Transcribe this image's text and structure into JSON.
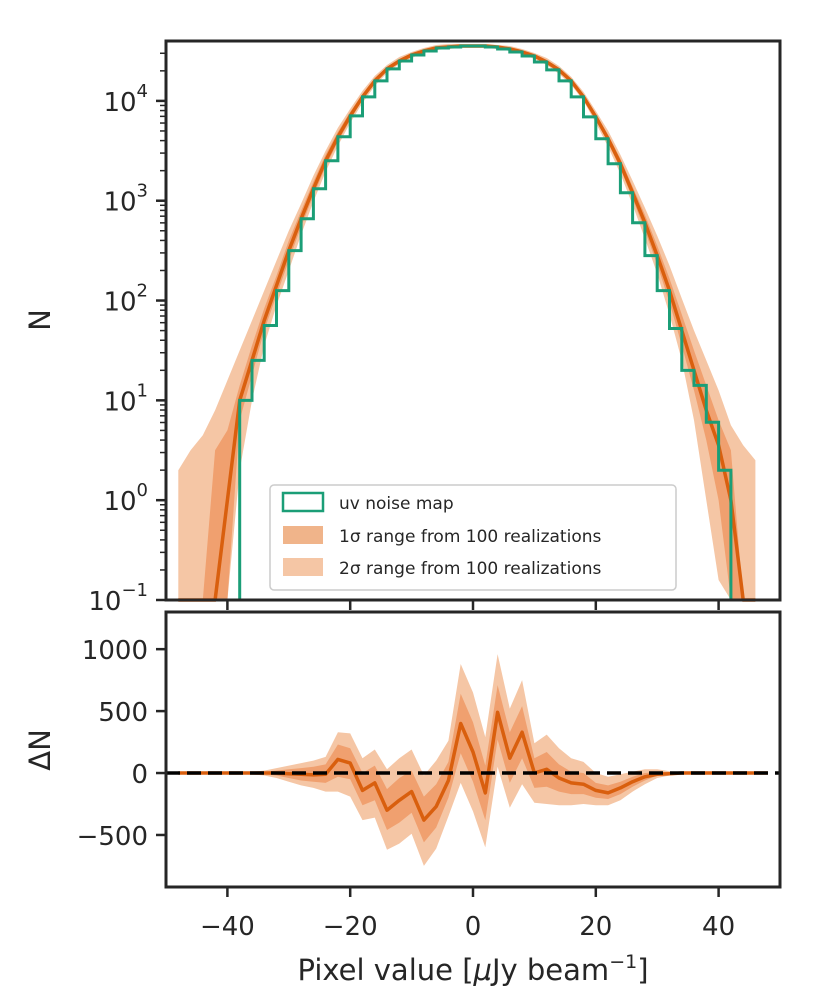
{
  "chart_data": [
    {
      "panel": "top",
      "type": "line",
      "yscale": "log",
      "xlim": [
        -50,
        50
      ],
      "ylim_exp": [
        -1,
        4.6
      ],
      "ylabel": "N",
      "ytick_base": "10",
      "ytick_exponents": [
        "4",
        "3",
        "2",
        "1",
        "0",
        "−1"
      ],
      "colors": {
        "median": "#d95f0e",
        "band1": "#f0a06f",
        "band2": "#f5c6a5",
        "hist": "#1b9e77",
        "axis": "#262626"
      },
      "x": [
        -48,
        -46,
        -44,
        -42,
        -40,
        -38,
        -36,
        -34,
        -32,
        -30,
        -28,
        -26,
        -24,
        -22,
        -20,
        -18,
        -16,
        -14,
        -12,
        -10,
        -8,
        -6,
        -4,
        -2,
        0,
        2,
        4,
        6,
        8,
        10,
        12,
        14,
        16,
        18,
        20,
        22,
        24,
        26,
        28,
        30,
        32,
        34,
        36,
        38,
        40,
        42,
        44,
        46
      ],
      "median_log": [
        -3,
        -3,
        -3,
        -2,
        0,
        1.0,
        1.4,
        1.8,
        2.15,
        2.5,
        2.82,
        3.12,
        3.4,
        3.64,
        3.85,
        4.04,
        4.2,
        4.32,
        4.4,
        4.46,
        4.5,
        4.53,
        4.54,
        4.55,
        4.55,
        4.55,
        4.54,
        4.52,
        4.49,
        4.45,
        4.39,
        4.31,
        4.2,
        4.04,
        3.84,
        3.62,
        3.37,
        3.08,
        2.78,
        2.45,
        2.1,
        1.7,
        1.3,
        0.9,
        0.55,
        0,
        -2,
        -3
      ],
      "band1_lower_log": [
        -3,
        -3,
        -3,
        -3,
        -1.5,
        0.8,
        1.25,
        1.7,
        2.05,
        2.4,
        2.74,
        3.05,
        3.34,
        3.59,
        3.81,
        4.01,
        4.17,
        4.3,
        4.38,
        4.44,
        4.49,
        4.52,
        4.53,
        4.54,
        4.54,
        4.54,
        4.53,
        4.51,
        4.48,
        4.43,
        4.37,
        4.29,
        4.18,
        4.02,
        3.81,
        3.58,
        3.32,
        3.02,
        2.7,
        2.36,
        1.98,
        1.55,
        1.1,
        0.6,
        0,
        -1.5,
        -3,
        -3
      ],
      "band1_upper_log": [
        -3,
        -3,
        -3,
        0.5,
        0.7,
        1.15,
        1.55,
        1.92,
        2.25,
        2.6,
        2.9,
        3.19,
        3.46,
        3.69,
        3.89,
        4.07,
        4.23,
        4.34,
        4.42,
        4.48,
        4.52,
        4.55,
        4.56,
        4.56,
        4.56,
        4.56,
        4.55,
        4.54,
        4.51,
        4.47,
        4.41,
        4.33,
        4.22,
        4.06,
        3.87,
        3.66,
        3.42,
        3.14,
        2.86,
        2.55,
        2.22,
        1.86,
        1.5,
        1.15,
        0.8,
        0.5,
        -3,
        -3
      ],
      "band2_lower_log": [
        -3,
        -3,
        -3,
        -3,
        -3,
        0.3,
        1.0,
        1.55,
        1.95,
        2.3,
        2.66,
        2.99,
        3.29,
        3.55,
        3.78,
        3.98,
        4.15,
        4.28,
        4.37,
        4.43,
        4.48,
        4.51,
        4.52,
        4.53,
        4.53,
        4.53,
        4.52,
        4.5,
        4.47,
        4.42,
        4.36,
        4.27,
        4.16,
        4.0,
        3.78,
        3.54,
        3.27,
        2.96,
        2.62,
        2.27,
        1.86,
        1.4,
        0.8,
        0,
        -0.8,
        -3,
        -3,
        -3
      ],
      "band2_upper_log": [
        0.3,
        0.5,
        0.65,
        0.9,
        1.2,
        1.5,
        1.8,
        2.1,
        2.4,
        2.7,
        2.97,
        3.25,
        3.5,
        3.73,
        3.92,
        4.1,
        4.25,
        4.36,
        4.44,
        4.49,
        4.53,
        4.56,
        4.57,
        4.57,
        4.57,
        4.57,
        4.56,
        4.55,
        4.52,
        4.48,
        4.43,
        4.35,
        4.24,
        4.09,
        3.9,
        3.7,
        3.46,
        3.2,
        2.93,
        2.65,
        2.35,
        2.02,
        1.7,
        1.4,
        1.1,
        0.75,
        0.55,
        0.4
      ],
      "hist_edges": [
        -50,
        -48,
        -46,
        -44,
        -42,
        -40,
        -38,
        -36,
        -34,
        -32,
        -30,
        -28,
        -26,
        -24,
        -22,
        -20,
        -18,
        -16,
        -14,
        -12,
        -10,
        -8,
        -6,
        -4,
        -2,
        0,
        2,
        4,
        6,
        8,
        10,
        12,
        14,
        16,
        18,
        20,
        22,
        24,
        26,
        28,
        30,
        32,
        34,
        36,
        38,
        40,
        42,
        44,
        46,
        48,
        50
      ],
      "hist_log": [
        -3,
        -3,
        -3,
        -3,
        -3,
        -3,
        1.0,
        1.4,
        1.75,
        2.1,
        2.5,
        2.82,
        3.12,
        3.4,
        3.64,
        3.85,
        4.04,
        4.2,
        4.32,
        4.4,
        4.46,
        4.5,
        4.53,
        4.54,
        4.55,
        4.55,
        4.54,
        4.52,
        4.49,
        4.45,
        4.39,
        4.31,
        4.2,
        4.04,
        3.84,
        3.62,
        3.37,
        3.08,
        2.78,
        2.45,
        2.1,
        1.72,
        1.3,
        1.15,
        0.78,
        0.3,
        -3,
        -3,
        -3,
        -3
      ],
      "legend": {
        "placement": "lower-center",
        "hist_label": "uv noise map",
        "band1_sigma": "1σ",
        "band2_sigma": "2σ",
        "band_label_rest": " range from 100 realizations"
      }
    },
    {
      "panel": "bottom",
      "type": "line",
      "xlim": [
        -50,
        50
      ],
      "ylim": [
        -920,
        1300
      ],
      "ylabel": "ΔN",
      "xlabel_prefix": "Pixel value [",
      "xlabel_mu": "μ",
      "xlabel_unit": "Jy beam",
      "xlabel_exp": "−1",
      "xlabel_suffix": "]",
      "yticks": [
        1000,
        500,
        0,
        -500
      ],
      "ytick_labels": [
        "1000",
        "500",
        "0",
        "−500"
      ],
      "xticks": [
        -40,
        -20,
        0,
        20,
        40
      ],
      "xtick_labels": [
        "−40",
        "−20",
        "0",
        "20",
        "40"
      ],
      "x": [
        -48,
        -46,
        -44,
        -42,
        -40,
        -38,
        -36,
        -34,
        -32,
        -30,
        -28,
        -26,
        -24,
        -22,
        -20,
        -18,
        -16,
        -14,
        -12,
        -10,
        -8,
        -6,
        -4,
        -2,
        0,
        2,
        4,
        6,
        8,
        10,
        12,
        14,
        16,
        18,
        20,
        22,
        24,
        26,
        28,
        30,
        32,
        34,
        36,
        38,
        40,
        42,
        44,
        46,
        48
      ],
      "median": [
        0,
        0,
        0,
        0,
        0,
        0,
        0,
        0,
        0,
        -5,
        -10,
        -15,
        -10,
        110,
        80,
        -140,
        -80,
        -300,
        -220,
        -150,
        -380,
        -270,
        -60,
        400,
        170,
        -160,
        490,
        120,
        330,
        0,
        30,
        -40,
        -80,
        -90,
        -140,
        -160,
        -120,
        -70,
        -30,
        -10,
        -5,
        0,
        0,
        0,
        0,
        0,
        0,
        0,
        0
      ],
      "band1_lower": [
        0,
        0,
        0,
        0,
        0,
        0,
        -5,
        -10,
        -20,
        -40,
        -60,
        -70,
        -80,
        -30,
        -50,
        -260,
        -220,
        -460,
        -400,
        -320,
        -560,
        -440,
        -200,
        160,
        -70,
        -380,
        270,
        -80,
        120,
        -120,
        -110,
        -150,
        -170,
        -170,
        -200,
        -210,
        -170,
        -110,
        -60,
        -20,
        -10,
        -5,
        0,
        0,
        0,
        0,
        0,
        0,
        0
      ],
      "band1_upper": [
        0,
        0,
        0,
        0,
        0,
        0,
        5,
        10,
        20,
        30,
        40,
        50,
        70,
        230,
        200,
        0,
        60,
        -130,
        -40,
        20,
        -190,
        -90,
        90,
        640,
        410,
        60,
        710,
        330,
        540,
        120,
        170,
        70,
        10,
        0,
        -80,
        -100,
        -70,
        -30,
        0,
        10,
        5,
        0,
        0,
        0,
        0,
        0,
        0,
        0,
        0
      ],
      "band2_lower": [
        0,
        0,
        0,
        0,
        0,
        0,
        -10,
        -20,
        -40,
        -70,
        -100,
        -120,
        -150,
        -150,
        -190,
        -380,
        -360,
        -620,
        -570,
        -490,
        -750,
        -610,
        -350,
        -80,
        -310,
        -600,
        50,
        -280,
        -90,
        -240,
        -250,
        -260,
        -260,
        -250,
        -260,
        -260,
        -220,
        -150,
        -90,
        -40,
        -20,
        -10,
        0,
        0,
        0,
        0,
        0,
        0,
        0
      ],
      "band2_upper": [
        0,
        0,
        0,
        0,
        0,
        0,
        10,
        20,
        40,
        60,
        80,
        100,
        130,
        330,
        320,
        120,
        190,
        30,
        120,
        190,
        -20,
        100,
        260,
        880,
        650,
        290,
        960,
        520,
        750,
        240,
        310,
        200,
        120,
        90,
        0,
        -30,
        -10,
        10,
        30,
        30,
        15,
        5,
        0,
        0,
        0,
        0,
        0,
        0,
        0
      ]
    }
  ]
}
